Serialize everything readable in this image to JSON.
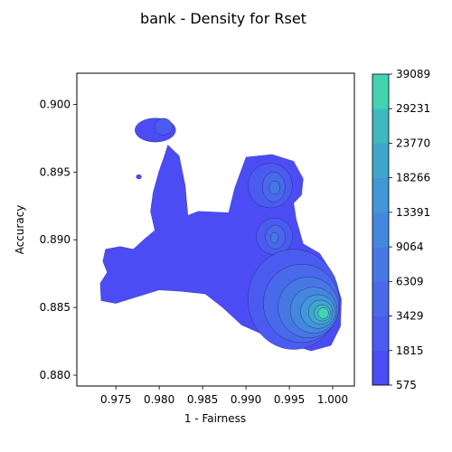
{
  "chart_data": {
    "type": "heatmap",
    "subtype": "filled-density-contour",
    "title": "bank - Density for Rset",
    "xlabel": "1 - Fairness",
    "ylabel": "Accuracy",
    "xlim": [
      0.9705,
      1.0025
    ],
    "ylim": [
      0.8792,
      0.9023
    ],
    "xticks": [
      "0.975",
      "0.980",
      "0.985",
      "0.990",
      "0.995",
      "1.000"
    ],
    "yticks": [
      "0.880",
      "0.885",
      "0.890",
      "0.895",
      "0.900"
    ],
    "grid": false,
    "colorbar": {
      "levels": [
        "575",
        "1815",
        "3429",
        "6309",
        "9064",
        "13391",
        "18266",
        "23770",
        "29231",
        "39089"
      ],
      "colors": [
        "#4c4cf5",
        "#4a5bf0",
        "#4869ea",
        "#4678e4",
        "#4488de",
        "#4297d6",
        "#40a7cc",
        "#3fb9c0",
        "#42d4b0",
        "#4be9a3"
      ]
    },
    "peak": {
      "x": 0.9985,
      "y": 0.8846
    },
    "regions": [
      {
        "name": "main density region",
        "x_range": [
          0.9735,
          1.0009
        ],
        "y_range": [
          0.8825,
          0.897
        ],
        "max_level": 1
      },
      {
        "name": "upper-left cluster",
        "x_range": [
          0.9772,
          0.9819
        ],
        "y_range": [
          0.8971,
          0.8991
        ],
        "max_level": 2
      },
      {
        "name": "small speck",
        "x_range": [
          0.9774,
          0.978
        ],
        "y_range": [
          0.8945,
          0.8948
        ],
        "max_level": 1
      },
      {
        "name": "upper-middle cluster",
        "x_range": [
          0.9888,
          0.9966
        ],
        "y_range": [
          0.8913,
          0.8963
        ],
        "max_level": 4
      },
      {
        "name": "middle cluster",
        "x_range": [
          0.9913,
          0.9955
        ],
        "y_range": [
          0.8887,
          0.8917
        ],
        "max_level": 4
      },
      {
        "name": "main peak",
        "x_range": [
          0.99,
          1.0009
        ],
        "y_range": [
          0.8818,
          0.8899
        ],
        "max_level": 10
      }
    ]
  }
}
